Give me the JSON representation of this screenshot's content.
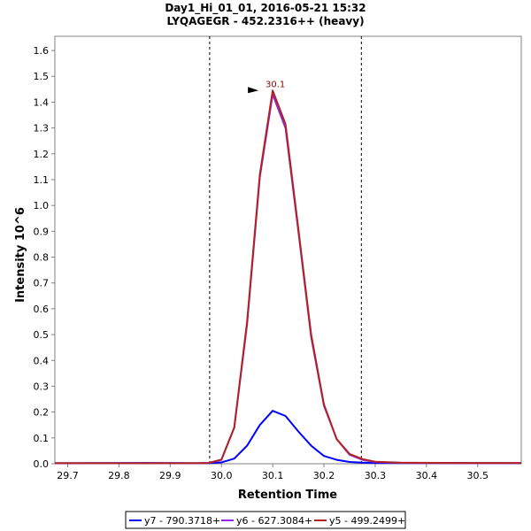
{
  "chart_data": {
    "type": "line",
    "title": "Day1_Hi_01_01, 2016-05-21 15:32",
    "subtitle": "LYQAGEGR - 452.2316++ (heavy)",
    "xlabel": "Retention Time",
    "ylabel": "Intensity 10^6",
    "xlim": [
      29.675,
      30.585
    ],
    "ylim": [
      0.0,
      1.655
    ],
    "x_ticks": [
      "29.7",
      "29.8",
      "29.9",
      "30.0",
      "30.1",
      "30.2",
      "30.3",
      "30.4",
      "30.5"
    ],
    "x_tick_values": [
      29.7,
      29.8,
      29.9,
      30.0,
      30.1,
      30.2,
      30.3,
      30.4,
      30.5
    ],
    "y_ticks": [
      "0.0",
      "0.1",
      "0.2",
      "0.3",
      "0.4",
      "0.5",
      "0.6",
      "0.7",
      "0.8",
      "0.9",
      "1.0",
      "1.1",
      "1.2",
      "1.3",
      "1.4",
      "1.5",
      "1.6"
    ],
    "y_tick_values": [
      0.0,
      0.1,
      0.2,
      0.3,
      0.4,
      0.5,
      0.6,
      0.7,
      0.8,
      0.9,
      1.0,
      1.1,
      1.2,
      1.3,
      1.4,
      1.5,
      1.6
    ],
    "integration_bounds": [
      29.977,
      30.273
    ],
    "peak_annotation": {
      "label": "30.1",
      "x": 30.1,
      "y": 1.445
    },
    "grid": false,
    "legend_position": "bottom-center",
    "x": [
      29.675,
      29.85,
      29.95,
      29.975,
      30.0,
      30.025,
      30.05,
      30.075,
      30.1,
      30.125,
      30.15,
      30.175,
      30.2,
      30.225,
      30.25,
      30.275,
      30.3,
      30.35,
      30.45,
      30.585
    ],
    "series": [
      {
        "name": "y7 - 790.3718+",
        "color": "#0000ff",
        "values": [
          0.002,
          0.003,
          0.002,
          0.002,
          0.005,
          0.02,
          0.07,
          0.15,
          0.205,
          0.185,
          0.125,
          0.07,
          0.03,
          0.015,
          0.007,
          0.004,
          0.003,
          0.003,
          0.003,
          0.002
        ]
      },
      {
        "name": "y6 - 627.3084+",
        "color": "#8a2be2",
        "values": [
          0.002,
          0.002,
          0.002,
          0.003,
          0.015,
          0.14,
          0.54,
          1.11,
          1.43,
          1.3,
          0.9,
          0.49,
          0.225,
          0.095,
          0.035,
          0.015,
          0.007,
          0.003,
          0.002,
          0.002
        ]
      },
      {
        "name": "y5 - 499.2499+",
        "color": "#b22222",
        "values": [
          0.002,
          0.002,
          0.002,
          0.003,
          0.016,
          0.14,
          0.55,
          1.12,
          1.445,
          1.315,
          0.91,
          0.5,
          0.23,
          0.095,
          0.038,
          0.018,
          0.008,
          0.004,
          0.003,
          0.003
        ]
      }
    ]
  }
}
